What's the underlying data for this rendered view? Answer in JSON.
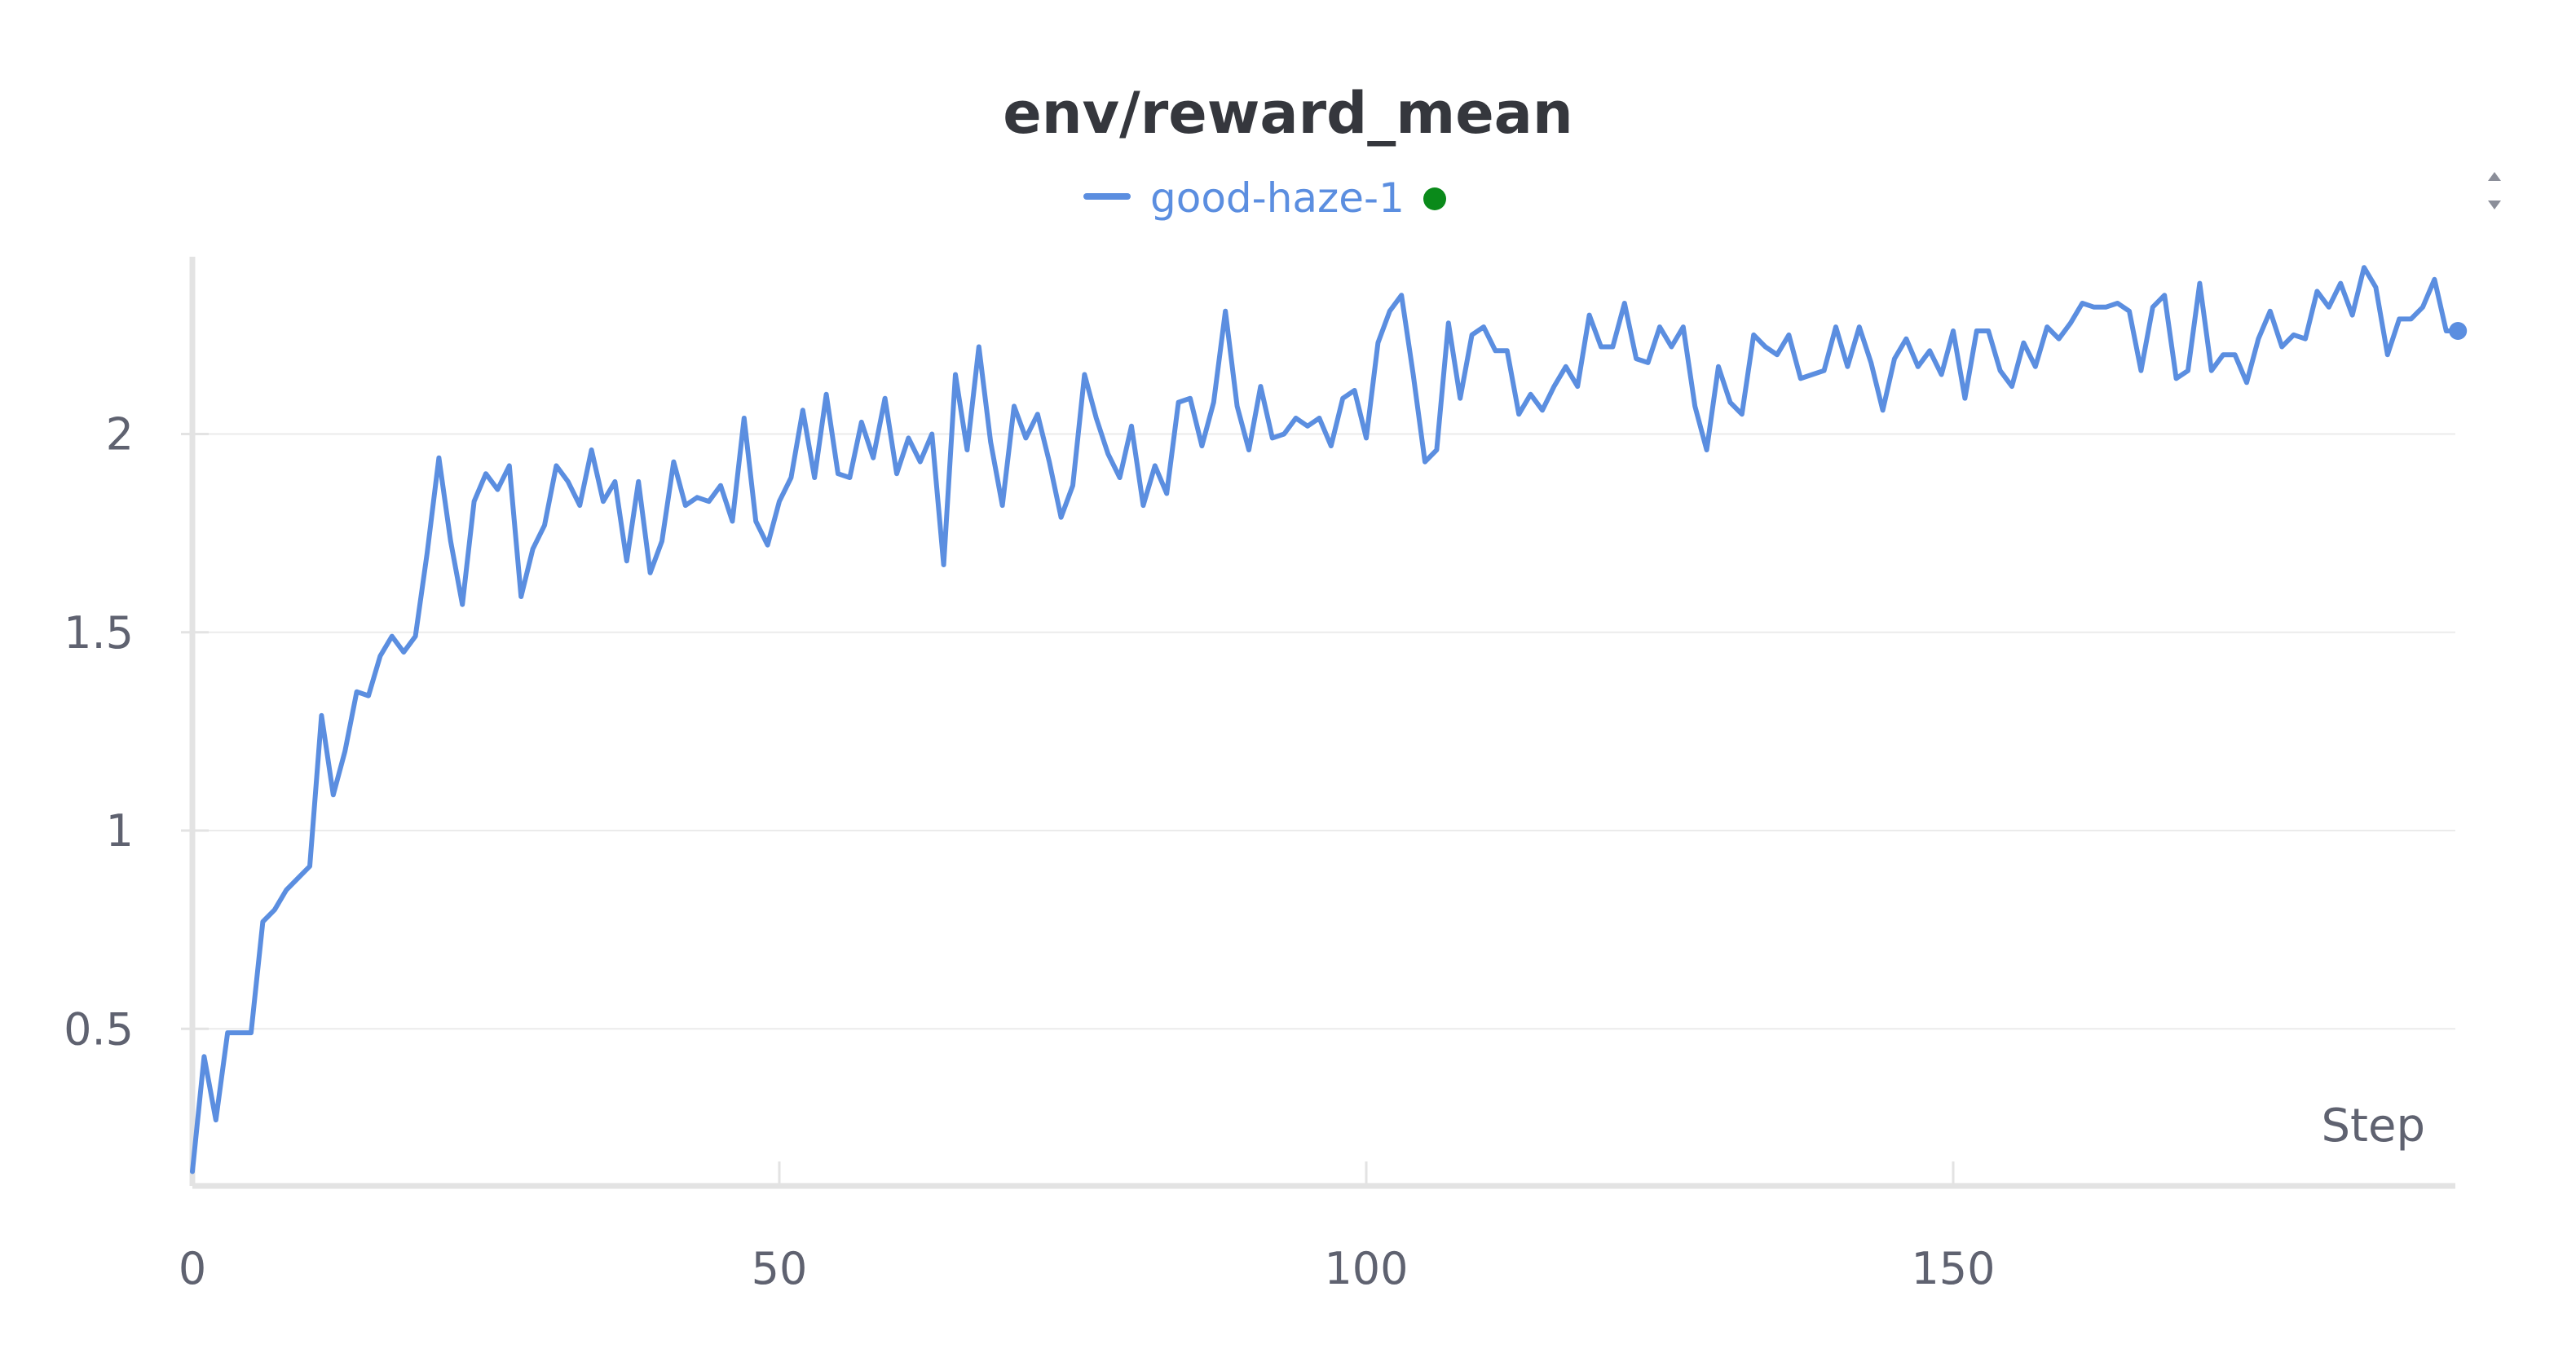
{
  "chart_data": {
    "type": "line",
    "title": "env/reward_mean",
    "xlabel": "Step",
    "ylabel": "",
    "xlim": [
      0,
      193
    ],
    "ylim": [
      0.12,
      2.45
    ],
    "xticks": [
      0,
      50,
      100,
      150
    ],
    "xtick_labels": [
      "0",
      "50",
      "100",
      "150"
    ],
    "yticks": [
      0.5,
      1,
      1.5,
      2
    ],
    "ytick_labels": [
      "0.5",
      "1",
      "1.5",
      "2"
    ],
    "grid": true,
    "legend": "top-center",
    "series": [
      {
        "name": "good-haze-1",
        "color": "#5b8ee0",
        "status_dot_color": "#0a8a1a",
        "x_start": 0,
        "x_step": 1,
        "values": [
          0.14,
          0.43,
          0.27,
          0.49,
          0.49,
          0.49,
          0.77,
          0.8,
          0.85,
          0.88,
          0.91,
          1.29,
          1.09,
          1.2,
          1.35,
          1.34,
          1.44,
          1.49,
          1.45,
          1.49,
          1.7,
          1.94,
          1.73,
          1.57,
          1.83,
          1.9,
          1.86,
          1.92,
          1.59,
          1.71,
          1.77,
          1.92,
          1.88,
          1.82,
          1.96,
          1.83,
          1.88,
          1.68,
          1.88,
          1.65,
          1.73,
          1.93,
          1.82,
          1.84,
          1.83,
          1.87,
          1.78,
          2.04,
          1.78,
          1.72,
          1.83,
          1.89,
          2.06,
          1.89,
          2.1,
          1.9,
          1.89,
          2.03,
          1.94,
          2.09,
          1.9,
          1.99,
          1.93,
          2.0,
          1.67,
          2.15,
          1.96,
          2.22,
          1.98,
          1.82,
          2.07,
          1.99,
          2.05,
          1.93,
          1.79,
          1.87,
          2.15,
          2.04,
          1.95,
          1.89,
          2.02,
          1.82,
          1.92,
          1.85,
          2.08,
          2.09,
          1.97,
          2.08,
          2.31,
          2.07,
          1.96,
          2.12,
          1.99,
          2.0,
          2.04,
          2.02,
          2.04,
          1.97,
          2.09,
          2.11,
          1.99,
          2.23,
          2.31,
          2.35,
          2.15,
          1.93,
          1.96,
          2.28,
          2.09,
          2.25,
          2.27,
          2.21,
          2.21,
          2.05,
          2.1,
          2.06,
          2.12,
          2.17,
          2.12,
          2.3,
          2.22,
          2.22,
          2.33,
          2.19,
          2.18,
          2.27,
          2.22,
          2.27,
          2.07,
          1.96,
          2.17,
          2.08,
          2.05,
          2.25,
          2.22,
          2.2,
          2.25,
          2.14,
          2.15,
          2.16,
          2.27,
          2.17,
          2.27,
          2.18,
          2.06,
          2.19,
          2.24,
          2.17,
          2.21,
          2.15,
          2.26,
          2.09,
          2.26,
          2.26,
          2.16,
          2.12,
          2.23,
          2.17,
          2.27,
          2.24,
          2.28,
          2.33,
          2.32,
          2.32,
          2.33,
          2.31,
          2.16,
          2.32,
          2.35,
          2.14,
          2.16,
          2.38,
          2.16,
          2.2,
          2.2,
          2.13,
          2.24,
          2.31,
          2.22,
          2.25,
          2.24,
          2.36,
          2.32,
          2.38,
          2.3,
          2.42,
          2.37,
          2.2,
          2.29,
          2.29,
          2.32,
          2.39,
          2.26,
          2.26
        ]
      }
    ]
  },
  "controls": {
    "legend_scroll_icon": "sort-up-down-icon"
  }
}
